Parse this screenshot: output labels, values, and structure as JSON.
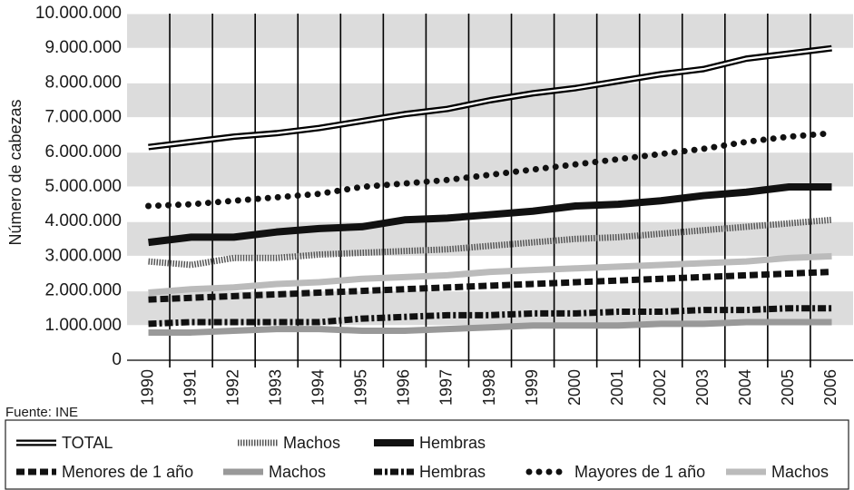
{
  "chart_data": {
    "type": "line",
    "y_label": "Número de cabezas",
    "source": "Fuente: INE",
    "categories": [
      "1990",
      "1991",
      "1992",
      "1993",
      "1994",
      "1995",
      "1996",
      "1997",
      "1998",
      "1999",
      "2000",
      "2001",
      "2002",
      "2003",
      "2004",
      "2005",
      "2006"
    ],
    "ylim": [
      0,
      10000000
    ],
    "yticks": [
      0,
      {
        "value": 1000000,
        "label": "1.000.000"
      },
      {
        "value": 2000000,
        "label": "2.000.000"
      },
      {
        "value": 3000000,
        "label": "3.000.000"
      },
      {
        "value": 4000000,
        "label": "4.000.000"
      },
      {
        "value": 5000000,
        "label": "5.000.000"
      },
      {
        "value": 6000000,
        "label": "6.000.000"
      },
      {
        "value": 7000000,
        "label": "7.000.000"
      },
      {
        "value": 8000000,
        "label": "8.000.000"
      },
      {
        "value": 9000000,
        "label": "9.000.000"
      },
      {
        "value": 10000000,
        "label": "10.000.000"
      }
    ],
    "series": [
      {
        "name": "TOTAL",
        "color": "#000000",
        "values": [
          6150000,
          6300000,
          6450000,
          6550000,
          6700000,
          6900000,
          7100000,
          7250000,
          7500000,
          7700000,
          7850000,
          8050000,
          8250000,
          8400000,
          8700000,
          8850000,
          9000000
        ]
      },
      {
        "name": "Machos",
        "color": "#555555",
        "values": [
          2850000,
          2750000,
          2950000,
          2950000,
          3050000,
          3100000,
          3150000,
          3200000,
          3300000,
          3400000,
          3500000,
          3550000,
          3650000,
          3750000,
          3850000,
          3950000,
          4050000
        ]
      },
      {
        "name": "Hembras",
        "color": "#111111",
        "values": [
          3400000,
          3550000,
          3550000,
          3700000,
          3800000,
          3850000,
          4050000,
          4100000,
          4200000,
          4300000,
          4450000,
          4500000,
          4600000,
          4750000,
          4850000,
          5000000,
          5000000
        ]
      },
      {
        "name": "Menores de 1 año",
        "color": "#111111",
        "values": [
          1750000,
          1800000,
          1850000,
          1900000,
          1950000,
          2000000,
          2050000,
          2100000,
          2150000,
          2200000,
          2250000,
          2300000,
          2350000,
          2400000,
          2450000,
          2500000,
          2550000
        ]
      },
      {
        "name": "Machos",
        "color": "#999999",
        "values": [
          800000,
          800000,
          850000,
          900000,
          900000,
          850000,
          850000,
          900000,
          950000,
          1000000,
          1000000,
          1000000,
          1050000,
          1050000,
          1100000,
          1100000,
          1100000
        ]
      },
      {
        "name": "Hembras",
        "color": "#111111",
        "values": [
          1050000,
          1100000,
          1100000,
          1100000,
          1100000,
          1200000,
          1250000,
          1300000,
          1300000,
          1350000,
          1350000,
          1400000,
          1400000,
          1450000,
          1450000,
          1500000,
          1500000
        ]
      },
      {
        "name": "Mayores de 1 año",
        "color": "#111111",
        "values": [
          4450000,
          4500000,
          4600000,
          4700000,
          4800000,
          5000000,
          5100000,
          5200000,
          5350000,
          5500000,
          5650000,
          5800000,
          5950000,
          6100000,
          6300000,
          6450000,
          6550000
        ]
      },
      {
        "name": "Machos",
        "color": "#bbbbbb",
        "values": [
          1950000,
          2050000,
          2100000,
          2200000,
          2250000,
          2350000,
          2400000,
          2450000,
          2550000,
          2600000,
          2650000,
          2700000,
          2750000,
          2800000,
          2850000,
          2950000,
          3000000
        ]
      }
    ]
  }
}
